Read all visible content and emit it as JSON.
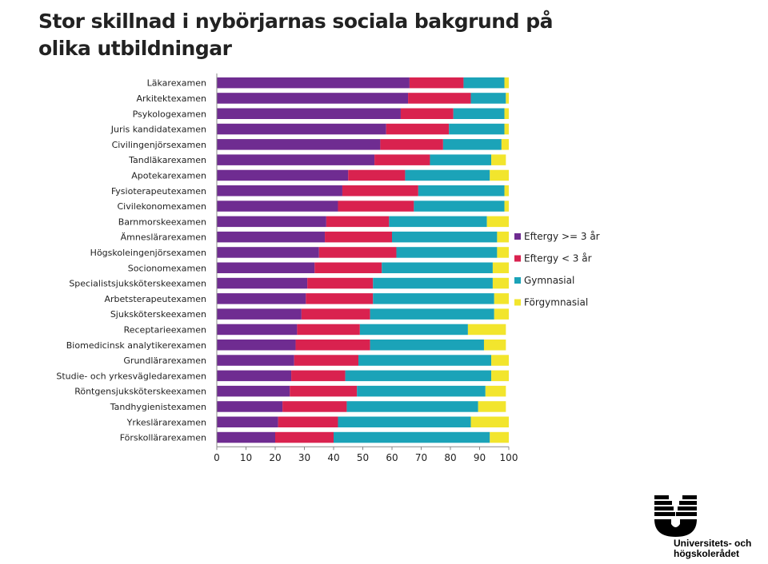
{
  "title": "Stor skillnad i nybörjarnas sociala bakgrund på olika utbildningar",
  "logo": {
    "line1": "Universitets- och",
    "line2": "högskolerådet"
  },
  "chart_data": {
    "type": "bar",
    "orientation": "horizontal",
    "stacked": true,
    "categories": [
      "Läkarexamen",
      "Arkitektexamen",
      "Psykologexamen",
      "Juris kandidatexamen",
      "Civilingenjörsexamen",
      "Tandläkarexamen",
      "Apotekarexamen",
      "Fysioterapeutexamen",
      "Civilekonomexamen",
      "Barnmorskeexamen",
      "Ämneslärarexamen",
      "Högskoleingenjörsexamen",
      "Socionomexamen",
      "Specialistsjuksköterskeexamen",
      "Arbetsterapeutexamen",
      "Sjuksköterskeexamen",
      "Receptarieexamen",
      "Biomedicinsk analytikerexamen",
      "Grundlärarexamen",
      "Studie- och yrkesvägledarexamen",
      "Röntgensjuksköterskeexamen",
      "Tandhygienistexamen",
      "Yrkeslärarexamen",
      "Förskollärarexamen"
    ],
    "series": [
      {
        "name": "Eftergy >= 3 år",
        "color": "#6f2c91",
        "values": [
          66,
          65.5,
          63,
          58,
          56,
          54,
          45,
          43,
          41.5,
          37.5,
          37,
          35,
          33.5,
          31,
          30.5,
          29,
          27.5,
          27,
          26.5,
          25.5,
          25,
          22.5,
          21,
          20
        ]
      },
      {
        "name": "Eftergy < 3 år",
        "color": "#d9224f",
        "values": [
          18.5,
          21.5,
          18,
          21.5,
          21.5,
          19,
          19.5,
          26,
          26,
          21.5,
          23,
          26.5,
          23,
          22.5,
          23,
          23.5,
          21.5,
          25.5,
          22,
          18.5,
          23,
          22,
          20.5,
          20
        ]
      },
      {
        "name": "Gymnasial",
        "color": "#1ba3b8",
        "values": [
          14,
          12,
          17.5,
          19,
          20,
          21,
          29,
          29.5,
          31,
          33.5,
          36,
          34.5,
          38,
          41,
          41.5,
          42.5,
          37,
          39,
          45.5,
          50,
          44,
          45,
          45.5,
          53.5
        ]
      },
      {
        "name": "Förgymnasial",
        "color": "#f2e52d",
        "values": [
          1.5,
          1,
          1.5,
          1.5,
          2.5,
          5,
          6.5,
          1.5,
          1.5,
          7.5,
          4,
          4,
          5.5,
          5.5,
          5,
          5,
          13,
          7.5,
          6,
          6,
          7,
          9.5,
          13,
          6.5
        ]
      }
    ],
    "xlim": [
      0,
      100
    ],
    "xticks": [
      0,
      10,
      20,
      30,
      40,
      50,
      60,
      70,
      80,
      90,
      100
    ],
    "grid": false,
    "legend": "right"
  }
}
